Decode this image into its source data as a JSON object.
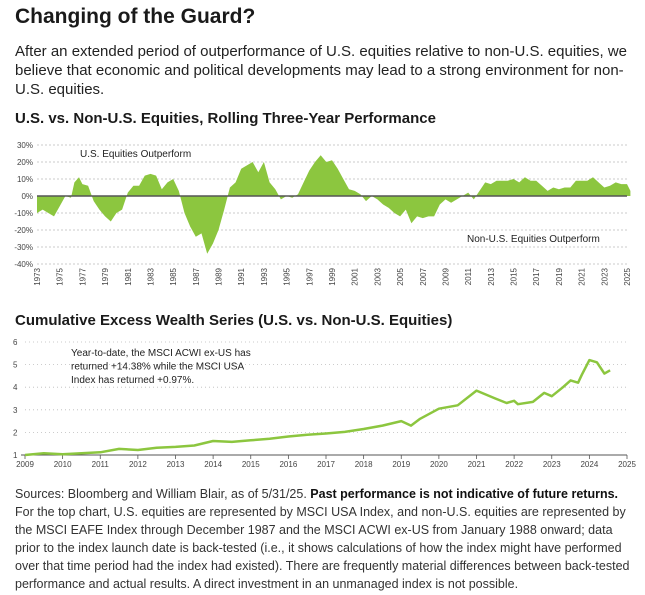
{
  "title": "Changing of the Guard?",
  "intro": "After an extended period of outperformance of U.S. equities relative to non-U.S. equities, we believe that economic and political developments may lead to a strong environment for non-U.S. equities.",
  "colors": {
    "series": "#8cc63f",
    "axis": "#555555",
    "grid": "#bbbbbb"
  },
  "chart_data": [
    {
      "type": "area",
      "title": "U.S. vs. Non-U.S. Equities, Rolling Three-Year Performance",
      "xlabel": "",
      "ylabel": "",
      "xlim": [
        1973,
        2025.4
      ],
      "ylim": [
        -40,
        30
      ],
      "yticks": [
        "30%",
        "20%",
        "10%",
        "0%",
        "-10%",
        "-20%",
        "-30%",
        "-40%"
      ],
      "ytick_values": [
        30,
        20,
        10,
        0,
        -10,
        -20,
        -30,
        -40
      ],
      "xticks": [
        "1973",
        "1975",
        "1977",
        "1979",
        "1981",
        "1983",
        "1985",
        "1987",
        "1989",
        "1991",
        "1993",
        "1995",
        "1997",
        "1999",
        "2001",
        "2003",
        "2005",
        "2007",
        "2009",
        "2011",
        "2013",
        "2015",
        "2017",
        "2019",
        "2021",
        "2023",
        "2025"
      ],
      "grid": true,
      "annotations": [
        "U.S. Equities Outperform",
        "Non-U.S. Equities Outperform"
      ],
      "x": [
        1973,
        1973.5,
        1974,
        1974.5,
        1975,
        1975.5,
        1976,
        1976.3,
        1976.7,
        1977,
        1977.5,
        1978,
        1978.5,
        1979,
        1979.5,
        1980,
        1980.5,
        1981,
        1981.5,
        1982,
        1982.5,
        1983,
        1983.5,
        1984,
        1984.5,
        1985,
        1985.5,
        1986,
        1986.5,
        1987,
        1987.5,
        1988,
        1988.5,
        1989,
        1989.5,
        1990,
        1990.5,
        1991,
        1991.5,
        1992,
        1992.5,
        1993,
        1993.5,
        1994,
        1994.5,
        1995,
        1995.5,
        1996,
        1996.5,
        1997,
        1997.5,
        1998,
        1998.5,
        1999,
        1999.5,
        2000,
        2000.5,
        2001,
        2001.5,
        2002,
        2002.5,
        2003,
        2003.5,
        2004,
        2004.5,
        2005,
        2005.5,
        2006,
        2006.5,
        2007,
        2007.5,
        2008,
        2008.5,
        2009,
        2009.5,
        2010,
        2010.5,
        2011,
        2011.5,
        2012,
        2012.5,
        2013,
        2013.5,
        2014,
        2014.5,
        2015,
        2015.5,
        2016,
        2016.5,
        2017,
        2017.5,
        2018,
        2018.5,
        2019,
        2019.5,
        2020,
        2020.5,
        2021,
        2021.5,
        2022,
        2022.5,
        2023,
        2023.5,
        2024,
        2024.5,
        2025,
        2025.3
      ],
      "values": [
        -10,
        -8,
        -10,
        -12,
        -6,
        0,
        -1,
        8,
        11,
        7,
        6,
        -3,
        -8,
        -12,
        -15,
        -10,
        -8,
        2,
        6,
        6,
        12,
        13,
        12,
        4,
        8,
        10,
        3,
        -10,
        -18,
        -24,
        -22,
        -34,
        -28,
        -20,
        -8,
        5,
        8,
        16,
        18,
        20,
        14,
        20,
        8,
        4,
        -2,
        0,
        -1,
        1,
        8,
        15,
        20,
        24,
        20,
        21,
        16,
        10,
        4,
        3,
        1,
        -3,
        0,
        -2,
        -5,
        -7,
        -10,
        -12,
        -8,
        -16,
        -12,
        -13,
        -12,
        -12,
        -5,
        -2,
        -4,
        -2,
        0,
        2,
        -2,
        3,
        8,
        7,
        9,
        9,
        9,
        10,
        8,
        11,
        9,
        9,
        6,
        3,
        5,
        4,
        5,
        5,
        9,
        9,
        9,
        11,
        8,
        5,
        6,
        8,
        7,
        7,
        3
      ]
    },
    {
      "type": "line",
      "title": "Cumulative Excess Wealth Series (U.S. vs. Non-U.S. Equities)",
      "xlabel": "",
      "ylabel": "",
      "xlim": [
        2009,
        2025
      ],
      "ylim": [
        1,
        6
      ],
      "yticks": [
        "1",
        "2",
        "3",
        "4",
        "5",
        "6"
      ],
      "ytick_values": [
        1,
        2,
        3,
        4,
        5,
        6
      ],
      "xticks": [
        "2009",
        "2010",
        "2011",
        "2012",
        "2013",
        "2014",
        "2015",
        "2016",
        "2017",
        "2018",
        "2019",
        "2020",
        "2021",
        "2022",
        "2023",
        "2024",
        "2025"
      ],
      "grid": true,
      "annotation": "Year-to-date, the MSCI ACWI ex-US has returned +14.38% while the MSCI USA Index has returned +0.97%.",
      "annotation_lines": [
        "Year-to-date, the MSCI ACWI ex-US has",
        "returned +14.38% while the MSCI USA",
        "Index has returned +0.97%."
      ],
      "x": [
        2009,
        2009.5,
        2010,
        2010.5,
        2011,
        2011.5,
        2012,
        2012.5,
        2013,
        2013.5,
        2014,
        2014.5,
        2015,
        2015.5,
        2016,
        2016.5,
        2017,
        2017.5,
        2018,
        2018.5,
        2019,
        2019.26,
        2019.5,
        2020,
        2020.5,
        2021,
        2021.5,
        2021.8,
        2022,
        2022.1,
        2022.5,
        2022.8,
        2023,
        2023.3,
        2023.5,
        2023.7,
        2023.8,
        2024,
        2024.2,
        2024.4,
        2024.55
      ],
      "values": [
        1.0,
        1.08,
        1.03,
        1.08,
        1.12,
        1.27,
        1.22,
        1.32,
        1.36,
        1.42,
        1.62,
        1.58,
        1.65,
        1.72,
        1.82,
        1.9,
        1.95,
        2.02,
        2.15,
        2.3,
        2.5,
        2.3,
        2.6,
        3.05,
        3.2,
        3.85,
        3.5,
        3.3,
        3.4,
        3.25,
        3.35,
        3.75,
        3.6,
        4.0,
        4.3,
        4.2,
        4.55,
        5.2,
        5.1,
        4.6,
        4.75
      ]
    }
  ],
  "footer": {
    "sources": "Sources: Bloomberg and William Blair, as of 5/31/25.",
    "disclaimer": "Past performance is not indicative of future returns.",
    "body": "For the top chart, U.S. equities are represented by MSCI USA Index, and non-U.S. equities are represented by the MSCI EAFE Index through December 1987 and the MSCI ACWI ex-US from January 1988 onward; data prior to the index launch date is back-tested (i.e., it shows calculations of how the index might have performed over that time period had the index had existed). There are frequently material differences between back-tested performance and actual results. A direct investment in an unmanaged index is not possible."
  }
}
